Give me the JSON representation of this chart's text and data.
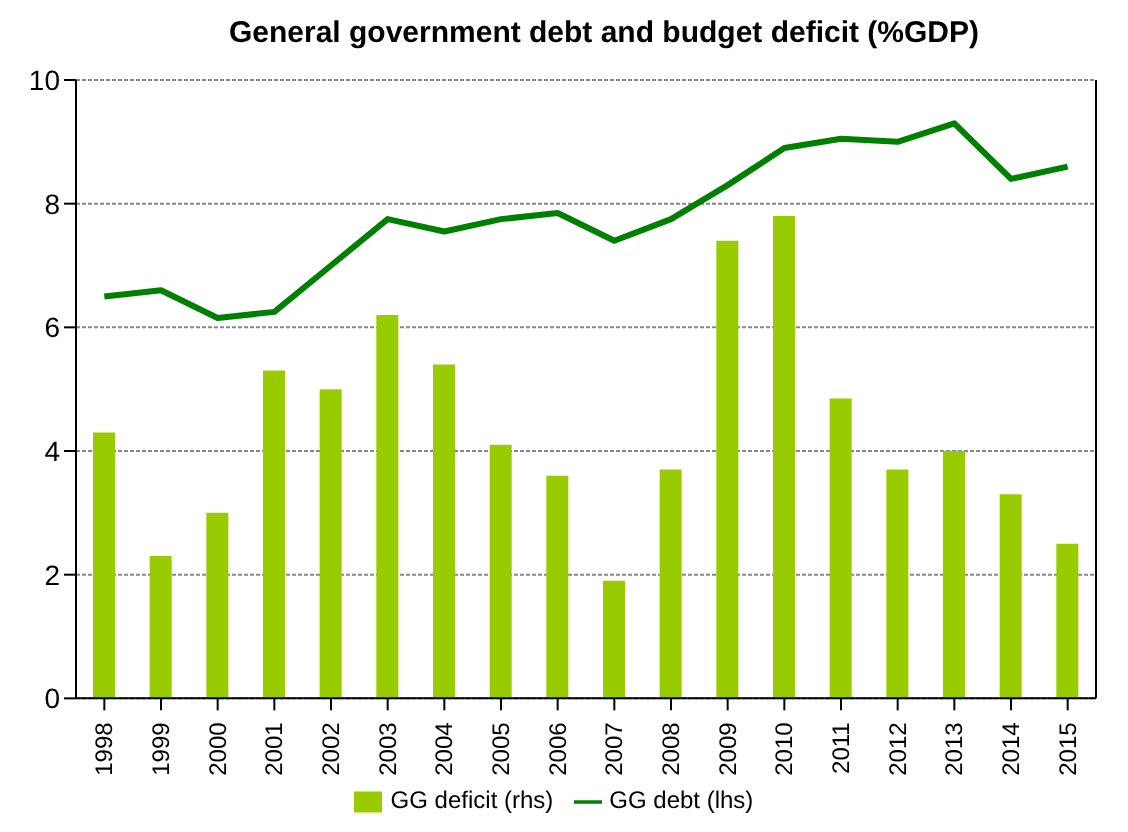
{
  "chart_data": {
    "type": "bar",
    "title": "General government debt and budget deficit (%GDP)",
    "categories": [
      "1998",
      "1999",
      "2000",
      "2001",
      "2002",
      "2003",
      "2004",
      "2005",
      "2006",
      "2007",
      "2008",
      "2009",
      "2010",
      "2011",
      "2012",
      "2013",
      "2014",
      "2015"
    ],
    "series": [
      {
        "name": "GG deficit (rhs)",
        "color": "#99cc00",
        "values": [
          4.3,
          2.3,
          3.0,
          5.3,
          5.0,
          6.2,
          5.4,
          4.1,
          3.6,
          1.9,
          3.7,
          7.4,
          7.8,
          4.85,
          3.7,
          4.0,
          3.3,
          2.5
        ]
      },
      {
        "name": "GG debt (lhs)",
        "type": "line",
        "color": "#008000",
        "values": [
          6.5,
          6.6,
          6.15,
          6.25,
          7.0,
          7.75,
          7.55,
          7.75,
          7.85,
          7.4,
          7.75,
          8.3,
          8.9,
          9.05,
          9.0,
          9.3,
          8.4,
          8.6
        ]
      }
    ],
    "ylim": [
      0,
      10
    ],
    "yticks": [
      0,
      2,
      4,
      6,
      8,
      10
    ],
    "grid": "y",
    "legend": "bottom",
    "marker": "none"
  }
}
